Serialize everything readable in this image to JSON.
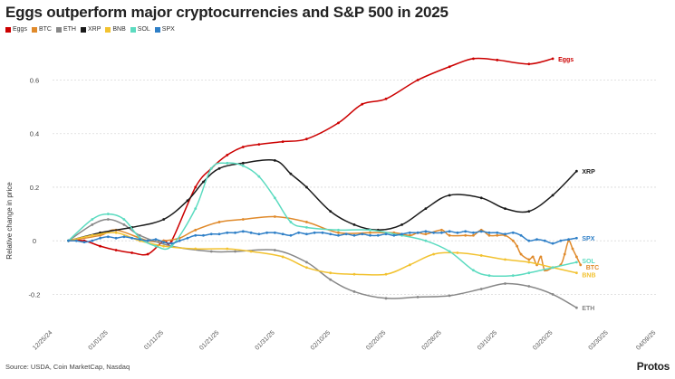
{
  "chart_data": {
    "type": "line",
    "title": "Eggs outperform major cryptocurrencies and S&P 500 in 2025",
    "xlabel": "",
    "ylabel": "Relative change in price",
    "ylim": [
      -0.3,
      0.72
    ],
    "xlim": [
      -2,
      74
    ],
    "yticks": [
      {
        "value": -0.2,
        "label": "-0.2"
      },
      {
        "value": 0,
        "label": "0"
      },
      {
        "value": 0.2,
        "label": "0.2"
      },
      {
        "value": 0.4,
        "label": "0.4"
      },
      {
        "value": 0.6,
        "label": "0.6"
      }
    ],
    "xticks": [
      {
        "value": -2,
        "label": "12/25/24"
      },
      {
        "value": 5,
        "label": "01/01/25"
      },
      {
        "value": 12,
        "label": "01/11/25"
      },
      {
        "value": 19,
        "label": "01/21/25"
      },
      {
        "value": 26,
        "label": "01/31/25"
      },
      {
        "value": 33,
        "label": "02/10/25"
      },
      {
        "value": 40,
        "label": "02/20/25"
      },
      {
        "value": 47,
        "label": "02/28/25"
      },
      {
        "value": 54,
        "label": "03/10/25"
      },
      {
        "value": 61,
        "label": "03/20/25"
      },
      {
        "value": 68,
        "label": "03/30/25"
      },
      {
        "value": 74,
        "label": "04/09/25"
      }
    ],
    "series": [
      {
        "name": "Eggs",
        "color": "#cc0000",
        "end_label": "Eggs",
        "points": [
          [
            0,
            0
          ],
          [
            2,
            0
          ],
          [
            4,
            -0.02
          ],
          [
            6,
            -0.035
          ],
          [
            8,
            -0.045
          ],
          [
            10,
            -0.05
          ],
          [
            12,
            0
          ],
          [
            13,
            0
          ],
          [
            16,
            0.2
          ],
          [
            18,
            0.27
          ],
          [
            20,
            0.32
          ],
          [
            22,
            0.35
          ],
          [
            24,
            0.36
          ],
          [
            27,
            0.37
          ],
          [
            30,
            0.38
          ],
          [
            34,
            0.44
          ],
          [
            37,
            0.51
          ],
          [
            40,
            0.53
          ],
          [
            44,
            0.6
          ],
          [
            48,
            0.65
          ],
          [
            51,
            0.68
          ],
          [
            54,
            0.675
          ],
          [
            58,
            0.66
          ],
          [
            61,
            0.68
          ]
        ]
      },
      {
        "name": "BTC",
        "color": "#e08a2b",
        "end_label": "BTC",
        "points": [
          [
            0,
            0
          ],
          [
            4,
            0.02
          ],
          [
            6,
            0.04
          ],
          [
            10,
            0
          ],
          [
            12,
            0
          ],
          [
            14,
            0.01
          ],
          [
            16,
            0.04
          ],
          [
            19,
            0.07
          ],
          [
            22,
            0.08
          ],
          [
            26,
            0.09
          ],
          [
            30,
            0.07
          ],
          [
            34,
            0.03
          ],
          [
            38,
            0.03
          ],
          [
            41,
            0.03
          ],
          [
            43,
            0.02
          ],
          [
            44,
            0.03
          ],
          [
            45,
            0.025
          ],
          [
            47,
            0.04
          ],
          [
            48,
            0.02
          ],
          [
            50,
            0.02
          ],
          [
            51,
            0.02
          ],
          [
            52,
            0.04
          ],
          [
            53,
            0.02
          ],
          [
            54,
            0.02
          ],
          [
            55,
            0.02
          ],
          [
            56,
            0.0
          ],
          [
            56.5,
            -0.02
          ],
          [
            57,
            -0.05
          ],
          [
            58,
            -0.07
          ],
          [
            58.5,
            -0.06
          ],
          [
            59,
            -0.09
          ],
          [
            59.5,
            -0.06
          ],
          [
            60,
            -0.11
          ],
          [
            61,
            -0.1
          ],
          [
            62,
            -0.09
          ],
          [
            62.5,
            -0.05
          ],
          [
            63,
            0
          ],
          [
            63.5,
            -0.03
          ],
          [
            64,
            -0.06
          ],
          [
            64.5,
            -0.09
          ]
        ]
      },
      {
        "name": "ETH",
        "color": "#888888",
        "end_label": "ETH",
        "points": [
          [
            0,
            0
          ],
          [
            3,
            0.06
          ],
          [
            5,
            0.08
          ],
          [
            7,
            0.06
          ],
          [
            9,
            0.02
          ],
          [
            13,
            -0.02
          ],
          [
            18,
            -0.04
          ],
          [
            21,
            -0.04
          ],
          [
            26,
            -0.035
          ],
          [
            30,
            -0.08
          ],
          [
            33,
            -0.145
          ],
          [
            36,
            -0.19
          ],
          [
            40,
            -0.215
          ],
          [
            44,
            -0.21
          ],
          [
            48,
            -0.205
          ],
          [
            52,
            -0.18
          ],
          [
            55,
            -0.16
          ],
          [
            58,
            -0.17
          ],
          [
            61,
            -0.2
          ],
          [
            64,
            -0.25
          ]
        ]
      },
      {
        "name": "XRP",
        "color": "#1a1a1a",
        "end_label": "XRP",
        "points": [
          [
            0,
            0
          ],
          [
            4,
            0.03
          ],
          [
            8,
            0.05
          ],
          [
            12,
            0.08
          ],
          [
            15,
            0.15
          ],
          [
            17,
            0.22
          ],
          [
            19,
            0.27
          ],
          [
            22,
            0.29
          ],
          [
            26,
            0.3
          ],
          [
            28,
            0.25
          ],
          [
            30,
            0.2
          ],
          [
            33,
            0.11
          ],
          [
            36,
            0.06
          ],
          [
            39,
            0.04
          ],
          [
            42,
            0.06
          ],
          [
            45,
            0.12
          ],
          [
            48,
            0.17
          ],
          [
            52,
            0.16
          ],
          [
            55,
            0.12
          ],
          [
            58,
            0.11
          ],
          [
            61,
            0.17
          ],
          [
            64,
            0.26
          ]
        ]
      },
      {
        "name": "BNB",
        "color": "#f2c230",
        "end_label": "BNB",
        "points": [
          [
            0,
            0
          ],
          [
            3,
            0.02
          ],
          [
            6,
            0.03
          ],
          [
            9,
            0.0
          ],
          [
            12,
            -0.02
          ],
          [
            16,
            -0.03
          ],
          [
            20,
            -0.03
          ],
          [
            23,
            -0.04
          ],
          [
            27,
            -0.06
          ],
          [
            30,
            -0.1
          ],
          [
            33,
            -0.12
          ],
          [
            36,
            -0.125
          ],
          [
            40,
            -0.125
          ],
          [
            43,
            -0.09
          ],
          [
            46,
            -0.05
          ],
          [
            49,
            -0.045
          ],
          [
            52,
            -0.055
          ],
          [
            55,
            -0.07
          ],
          [
            58,
            -0.08
          ],
          [
            61,
            -0.1
          ],
          [
            64,
            -0.12
          ]
        ]
      },
      {
        "name": "SOL",
        "color": "#5cdbc0",
        "end_label": "SOL",
        "points": [
          [
            0,
            0
          ],
          [
            3,
            0.08
          ],
          [
            5,
            0.1
          ],
          [
            7,
            0.08
          ],
          [
            9,
            0.01
          ],
          [
            11,
            -0.02
          ],
          [
            13,
            -0.02
          ],
          [
            16,
            0.12
          ],
          [
            18,
            0.27
          ],
          [
            20,
            0.29
          ],
          [
            22,
            0.28
          ],
          [
            24,
            0.24
          ],
          [
            26,
            0.16
          ],
          [
            28,
            0.07
          ],
          [
            30,
            0.05
          ],
          [
            34,
            0.04
          ],
          [
            38,
            0.04
          ],
          [
            42,
            0.02
          ],
          [
            45,
            0.0
          ],
          [
            48,
            -0.04
          ],
          [
            51,
            -0.11
          ],
          [
            53,
            -0.13
          ],
          [
            56,
            -0.13
          ],
          [
            58,
            -0.12
          ],
          [
            61,
            -0.1
          ],
          [
            64,
            -0.08
          ]
        ]
      },
      {
        "name": "SPX",
        "color": "#2e7fc7",
        "end_label": "SPX",
        "points": [
          [
            0,
            0
          ],
          [
            1,
            0
          ],
          [
            2,
            -0.005
          ],
          [
            3,
            0
          ],
          [
            4,
            0.01
          ],
          [
            5,
            0.015
          ],
          [
            6,
            0.01
          ],
          [
            7,
            0.015
          ],
          [
            8,
            0.01
          ],
          [
            9,
            0.005
          ],
          [
            10,
            0
          ],
          [
            11,
            0.005
          ],
          [
            12,
            -0.005
          ],
          [
            13,
            -0.01
          ],
          [
            14,
            0
          ],
          [
            15,
            0.01
          ],
          [
            16,
            0.02
          ],
          [
            17,
            0.02
          ],
          [
            18,
            0.025
          ],
          [
            19,
            0.025
          ],
          [
            20,
            0.03
          ],
          [
            21,
            0.03
          ],
          [
            22,
            0.035
          ],
          [
            23,
            0.03
          ],
          [
            24,
            0.025
          ],
          [
            25,
            0.03
          ],
          [
            26,
            0.03
          ],
          [
            27,
            0.025
          ],
          [
            28,
            0.02
          ],
          [
            29,
            0.03
          ],
          [
            30,
            0.025
          ],
          [
            31,
            0.03
          ],
          [
            32,
            0.03
          ],
          [
            33,
            0.025
          ],
          [
            34,
            0.02
          ],
          [
            35,
            0.025
          ],
          [
            36,
            0.02
          ],
          [
            37,
            0.025
          ],
          [
            38,
            0.02
          ],
          [
            39,
            0.02
          ],
          [
            40,
            0.025
          ],
          [
            41,
            0.02
          ],
          [
            42,
            0.025
          ],
          [
            43,
            0.03
          ],
          [
            44,
            0.03
          ],
          [
            45,
            0.035
          ],
          [
            46,
            0.03
          ],
          [
            47,
            0.03
          ],
          [
            48,
            0.035
          ],
          [
            49,
            0.03
          ],
          [
            50,
            0.035
          ],
          [
            51,
            0.03
          ],
          [
            52,
            0.035
          ],
          [
            53,
            0.03
          ],
          [
            54,
            0.03
          ],
          [
            55,
            0.025
          ],
          [
            56,
            0.03
          ],
          [
            57,
            0.02
          ],
          [
            58,
            0.0
          ],
          [
            59,
            0.005
          ],
          [
            60,
            0.0
          ],
          [
            61,
            -0.01
          ],
          [
            62,
            0.0
          ],
          [
            63,
            0.005
          ],
          [
            64,
            0.01
          ]
        ]
      }
    ]
  },
  "source_note": "Source: USDA, Coin MarketCap, Nasdaq",
  "brand": "Protos"
}
